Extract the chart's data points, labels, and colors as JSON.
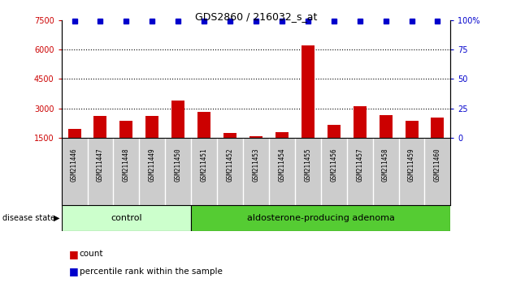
{
  "title": "GDS2860 / 216032_s_at",
  "samples": [
    "GSM211446",
    "GSM211447",
    "GSM211448",
    "GSM211449",
    "GSM211450",
    "GSM211451",
    "GSM211452",
    "GSM211453",
    "GSM211454",
    "GSM211455",
    "GSM211456",
    "GSM211457",
    "GSM211458",
    "GSM211459",
    "GSM211460"
  ],
  "counts": [
    1950,
    2600,
    2350,
    2600,
    3400,
    2800,
    1750,
    1570,
    1800,
    6200,
    2150,
    3100,
    2650,
    2350,
    2550
  ],
  "percentiles": [
    99,
    99,
    99,
    99,
    99,
    99,
    99,
    99,
    99,
    99,
    99,
    99,
    99,
    99,
    99
  ],
  "group_split": 5,
  "group_labels": [
    "control",
    "aldosterone-producing adenoma"
  ],
  "ylim_left": [
    1500,
    7500
  ],
  "ylim_right": [
    0,
    100
  ],
  "yticks_left": [
    1500,
    3000,
    4500,
    6000,
    7500
  ],
  "yticks_right": [
    0,
    25,
    50,
    75,
    100
  ],
  "bar_color": "#cc0000",
  "percentile_color": "#0000cc",
  "background_color": "#ffffff",
  "tick_color_left": "#cc0000",
  "tick_color_right": "#0000cc",
  "control_color": "#ccffcc",
  "adenoma_color": "#55cc33",
  "label_bg_color": "#cccccc",
  "label_count": "count",
  "label_percentile": "percentile rank within the sample",
  "disease_state_label": "disease state"
}
